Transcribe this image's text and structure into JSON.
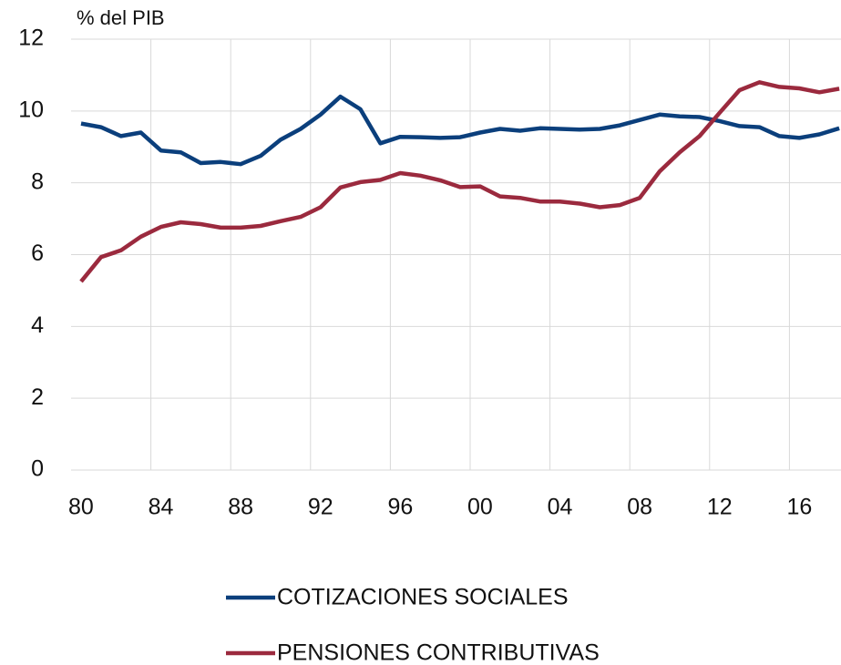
{
  "chart_data": {
    "type": "line",
    "y_label": "% del PIB",
    "categories": [
      "80",
      null,
      null,
      null,
      "84",
      null,
      null,
      null,
      "88",
      null,
      null,
      null,
      "92",
      null,
      null,
      null,
      "96",
      null,
      null,
      null,
      "00",
      null,
      null,
      null,
      "04",
      null,
      null,
      null,
      "08",
      null,
      null,
      null,
      "12",
      null,
      null,
      null,
      "16",
      null,
      null
    ],
    "series": [
      {
        "name": "COTIZACIONES SOCIALES",
        "color": "#0b3f7c",
        "values": [
          9.65,
          9.55,
          9.3,
          9.4,
          8.9,
          8.85,
          8.55,
          8.58,
          8.52,
          8.75,
          9.2,
          9.5,
          9.9,
          10.4,
          10.05,
          9.1,
          9.28,
          9.27,
          9.25,
          9.27,
          9.4,
          9.5,
          9.45,
          9.52,
          9.5,
          9.48,
          9.5,
          9.6,
          9.75,
          9.9,
          9.85,
          9.83,
          9.72,
          9.58,
          9.55,
          9.3,
          9.25,
          9.35,
          9.52
        ]
      },
      {
        "name": "PENSIONES CONTRIBUTIVAS",
        "color": "#9b2a3e",
        "values": [
          5.25,
          5.93,
          6.12,
          6.5,
          6.77,
          6.9,
          6.85,
          6.75,
          6.75,
          6.8,
          6.93,
          7.05,
          7.32,
          7.87,
          8.02,
          8.08,
          8.27,
          8.2,
          8.07,
          7.88,
          7.9,
          7.62,
          7.58,
          7.48,
          7.48,
          7.42,
          7.32,
          7.38,
          7.58,
          8.32,
          8.85,
          9.3,
          9.95,
          10.58,
          10.8,
          10.67,
          10.63,
          10.52,
          10.62
        ]
      }
    ],
    "ylim": [
      0,
      12
    ],
    "yticks": [
      0,
      2,
      4,
      6,
      8,
      10,
      12
    ],
    "grid": true
  }
}
